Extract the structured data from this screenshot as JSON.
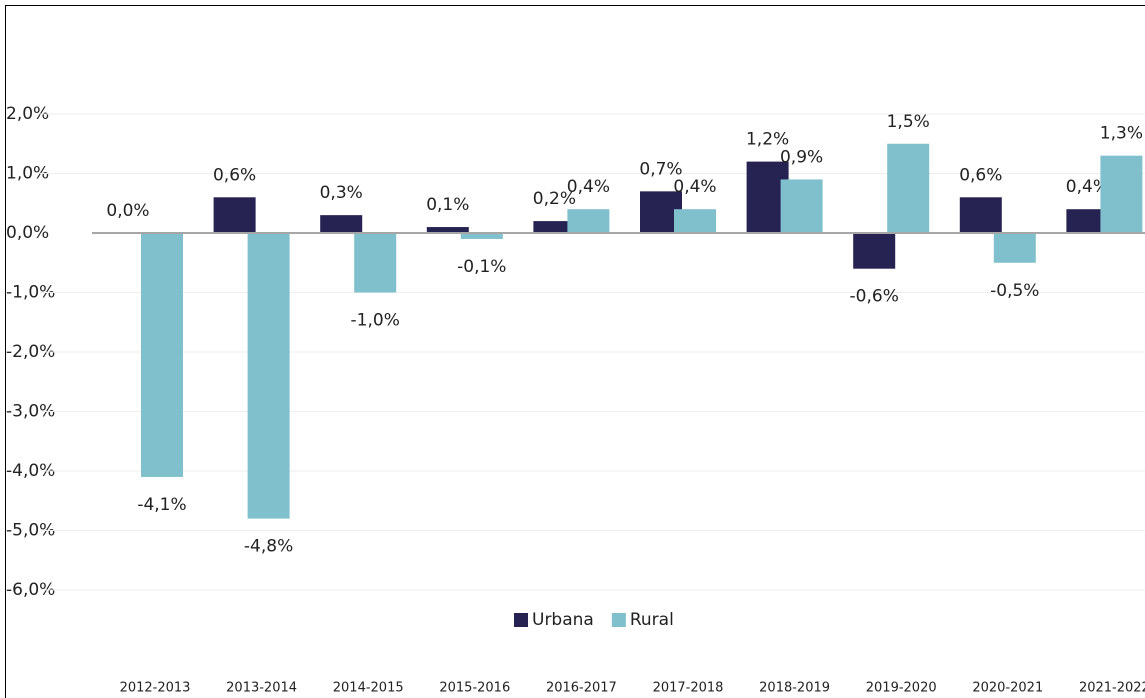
{
  "chart_data": {
    "type": "bar",
    "categories": [
      "2012-2013",
      "2013-2014",
      "2014-2015",
      "2015-2016",
      "2016-2017",
      "2017-2018",
      "2018-2019",
      "2019-2020",
      "2020-2021",
      "2021-2022"
    ],
    "series": [
      {
        "name": "Urbana",
        "color": "#262251",
        "values": [
          0.0,
          0.6,
          0.3,
          0.1,
          0.2,
          0.7,
          1.2,
          -0.6,
          0.6,
          0.4
        ],
        "value_labels": [
          "0,0%",
          "0,6%",
          "0,3%",
          "0,1%",
          "0,2%",
          "0,7%",
          "1,2%",
          "-0,6%",
          "0,6%",
          "0,4%"
        ]
      },
      {
        "name": "Rural",
        "color": "#7fc0cc",
        "values": [
          -4.1,
          -4.8,
          -1.0,
          -0.1,
          0.4,
          0.4,
          0.9,
          1.5,
          -0.5,
          1.3
        ],
        "value_labels": [
          "-4,1%",
          "-4,8%",
          "-1,0%",
          "-0,1%",
          "0,4%",
          "0,4%",
          "0,9%",
          "1,5%",
          "-0,5%",
          "1,3%"
        ]
      }
    ],
    "ylim": [
      -6,
      2
    ],
    "yticks": [
      {
        "value": -6,
        "label": "-6,0%"
      },
      {
        "value": -5,
        "label": "-5,0%"
      },
      {
        "value": -4,
        "label": "-4,0%"
      },
      {
        "value": -3,
        "label": "-3,0%"
      },
      {
        "value": -2,
        "label": "-2,0%"
      },
      {
        "value": -1,
        "label": "-1,0%"
      },
      {
        "value": 0,
        "label": "0,0%"
      },
      {
        "value": 1,
        "label": "1,0%"
      },
      {
        "value": 2,
        "label": "2,0%"
      }
    ],
    "grid": true,
    "legend": "bottom"
  }
}
